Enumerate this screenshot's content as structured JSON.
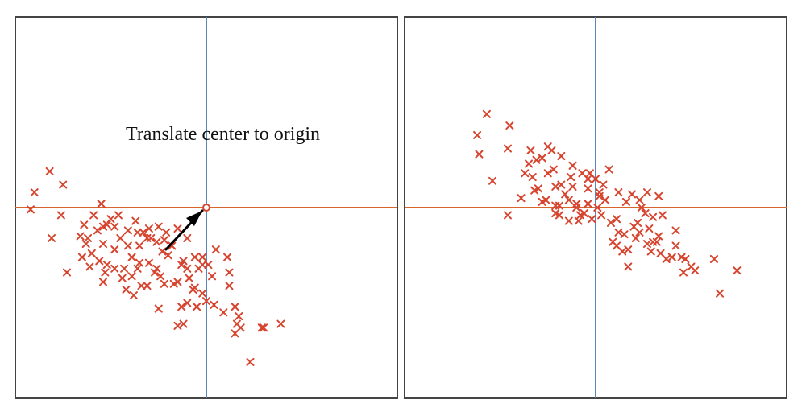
{
  "colors": {
    "points": "#d6452f",
    "horizontal_axis": "#d9652b",
    "vertical_axis": "#5b86b8",
    "frame": "#444444",
    "annotation_arrow": "#000000"
  },
  "annotation": {
    "text": "Translate center to origin",
    "arrow_icon": "arrow-up-right-icon"
  },
  "chart_data": [
    {
      "type": "scatter",
      "name": "before-translation",
      "marker": "x",
      "grid": false,
      "xlim": [
        -10,
        10
      ],
      "ylim": [
        -10,
        10
      ],
      "center": [
        0,
        0
      ],
      "points": [
        [
          -8.2,
          1.9
        ],
        [
          -9.0,
          0.8
        ],
        [
          -9.2,
          -0.1
        ],
        [
          -7.5,
          1.2
        ],
        [
          -7.6,
          -0.4
        ],
        [
          -8.1,
          -1.6
        ],
        [
          -7.3,
          -3.4
        ],
        [
          -5.9,
          -0.4
        ],
        [
          -5.7,
          -1.2
        ],
        [
          -5.5,
          0.2
        ],
        [
          -5.2,
          -0.9
        ],
        [
          -4.8,
          -1.0
        ],
        [
          -5.4,
          -1.9
        ],
        [
          -6.2,
          -1.6
        ],
        [
          -6.0,
          -2.4
        ],
        [
          -5.6,
          -2.8
        ],
        [
          -5.2,
          -3.0
        ],
        [
          -4.8,
          -2.2
        ],
        [
          -4.5,
          -1.6
        ],
        [
          -4.3,
          -3.2
        ],
        [
          -3.9,
          -3.6
        ],
        [
          -3.9,
          -2.6
        ],
        [
          -3.5,
          -2.0
        ],
        [
          -3.3,
          -1.3
        ],
        [
          -3.0,
          -2.9
        ],
        [
          -3.4,
          -4.1
        ],
        [
          -3.1,
          -4.1
        ],
        [
          -2.7,
          -3.4
        ],
        [
          -2.4,
          -3.6
        ],
        [
          -2.0,
          -2.5
        ],
        [
          -2.2,
          -1.7
        ],
        [
          -2.5,
          -1.0
        ],
        [
          -2.6,
          -3.2
        ],
        [
          -2.2,
          -4.0
        ],
        [
          -1.7,
          -4.0
        ],
        [
          -1.3,
          -3.0
        ],
        [
          -1.8,
          -2.0
        ],
        [
          -1.2,
          -2.8
        ],
        [
          -1.0,
          -1.6
        ],
        [
          -0.9,
          -3.7
        ],
        [
          -0.6,
          -4.2
        ],
        [
          -1.5,
          -3.9
        ],
        [
          -2.1,
          -1.3
        ],
        [
          -4.1,
          -1.2
        ],
        [
          -3.6,
          -1.3
        ],
        [
          -4.8,
          -3.2
        ],
        [
          -4.2,
          -4.3
        ],
        [
          -3.8,
          -4.6
        ],
        [
          -5.3,
          -3.4
        ],
        [
          -6.3,
          -1.9
        ],
        [
          -6.6,
          -1.5
        ],
        [
          -6.4,
          -0.9
        ],
        [
          -5.0,
          -0.6
        ],
        [
          -4.6,
          -0.4
        ],
        [
          -3.7,
          -0.7
        ],
        [
          -3.0,
          -1.1
        ],
        [
          -2.6,
          -1.8
        ],
        [
          -2.3,
          -2.3
        ],
        [
          -1.5,
          -1.1
        ],
        [
          -0.2,
          -2.6
        ],
        [
          0.1,
          -3.0
        ],
        [
          0.3,
          -3.6
        ],
        [
          -0.2,
          -4.5
        ],
        [
          -0.5,
          -5.2
        ],
        [
          -0.7,
          -4.3
        ],
        [
          -1.0,
          -5.0
        ],
        [
          -1.3,
          -5.2
        ],
        [
          -2.5,
          -5.3
        ],
        [
          -1.5,
          -6.2
        ],
        [
          0.0,
          -4.9
        ],
        [
          0.4,
          -5.1
        ],
        [
          0.9,
          -5.5
        ],
        [
          1.2,
          -4.1
        ],
        [
          1.1,
          -2.6
        ],
        [
          1.2,
          -3.4
        ],
        [
          1.5,
          -5.2
        ],
        [
          1.7,
          -5.7
        ],
        [
          1.6,
          -6.1
        ],
        [
          1.8,
          -6.3
        ],
        [
          1.5,
          -6.6
        ],
        [
          2.9,
          -6.3
        ],
        [
          3.9,
          -6.1
        ],
        [
          2.3,
          -8.1
        ],
        [
          3.0,
          -6.3
        ],
        [
          -1.2,
          -6.1
        ],
        [
          -3.1,
          -1.6
        ],
        [
          -4.1,
          -2.0
        ],
        [
          -3.5,
          -2.9
        ],
        [
          -5.4,
          -1.0
        ],
        [
          -6.5,
          -2.6
        ],
        [
          -6.1,
          -3.1
        ],
        [
          -5.4,
          -3.9
        ],
        [
          -4.4,
          -3.7
        ],
        [
          -3.6,
          -3.2
        ],
        [
          -2.9,
          -1.6
        ],
        [
          -0.4,
          -3.2
        ],
        [
          -0.2,
          -3.0
        ],
        [
          -0.6,
          -2.6
        ],
        [
          0.5,
          -2.2
        ],
        [
          -1.0,
          -3.2
        ]
      ]
    },
    {
      "type": "scatter",
      "name": "after-translation",
      "marker": "x",
      "grid": false,
      "xlim": [
        -10,
        10
      ],
      "ylim": [
        -10,
        10
      ],
      "center": [
        0,
        0
      ],
      "points": [
        [
          -5.7,
          4.9
        ],
        [
          -6.2,
          3.8
        ],
        [
          -6.1,
          2.8
        ],
        [
          -4.6,
          3.1
        ],
        [
          -4.5,
          4.3
        ],
        [
          -5.4,
          1.4
        ],
        [
          -4.6,
          -0.4
        ],
        [
          -3.1,
          2.5
        ],
        [
          -3.3,
          1.6
        ],
        [
          -3.0,
          1.0
        ],
        [
          -2.3,
          3.0
        ],
        [
          -2.8,
          2.6
        ],
        [
          -2.2,
          2.0
        ],
        [
          -3.2,
          0.9
        ],
        [
          -2.8,
          0.3
        ],
        [
          -2.1,
          0.1
        ],
        [
          -1.8,
          1.2
        ],
        [
          -1.8,
          2.7
        ],
        [
          -1.2,
          2.2
        ],
        [
          -1.3,
          1.6
        ],
        [
          -1.6,
          0.7
        ],
        [
          -1.0,
          0.2
        ],
        [
          -0.7,
          1.8
        ],
        [
          -0.4,
          1.5
        ],
        [
          -0.4,
          0.2
        ],
        [
          -0.9,
          -0.7
        ],
        [
          -1.4,
          -0.7
        ],
        [
          -1.9,
          -0.4
        ],
        [
          -2.6,
          0.4
        ],
        [
          -2.1,
          -0.3
        ],
        [
          -0.8,
          -0.4
        ],
        [
          -0.2,
          -0.6
        ],
        [
          0.1,
          0.0
        ],
        [
          0.2,
          0.6
        ],
        [
          0.0,
          1.5
        ],
        [
          0.7,
          2.0
        ],
        [
          0.5,
          0.4
        ],
        [
          0.8,
          -0.8
        ],
        [
          1.1,
          -0.6
        ],
        [
          1.2,
          0.8
        ],
        [
          1.6,
          0.3
        ],
        [
          1.9,
          0.7
        ],
        [
          2.3,
          0.4
        ],
        [
          2.7,
          0.8
        ],
        [
          2.2,
          -0.8
        ],
        [
          2.1,
          -1.6
        ],
        [
          2.3,
          -1.3
        ],
        [
          2.6,
          -0.3
        ],
        [
          2.4,
          0.0
        ],
        [
          3.3,
          0.6
        ],
        [
          3.5,
          -0.4
        ],
        [
          2.7,
          -1.9
        ],
        [
          1.2,
          -1.3
        ],
        [
          0.9,
          -1.8
        ],
        [
          1.7,
          -2.2
        ],
        [
          1.7,
          -3.1
        ],
        [
          1.4,
          -2.3
        ],
        [
          3.0,
          -1.8
        ],
        [
          3.2,
          -1.8
        ],
        [
          3.4,
          -2.4
        ],
        [
          4.2,
          -1.2
        ],
        [
          4.2,
          -2.0
        ],
        [
          4.0,
          -2.6
        ],
        [
          4.5,
          -2.6
        ],
        [
          4.7,
          -2.7
        ],
        [
          4.6,
          -3.4
        ],
        [
          5.0,
          -3.1
        ],
        [
          5.2,
          -3.3
        ],
        [
          6.2,
          -2.7
        ],
        [
          7.4,
          -3.3
        ],
        [
          6.5,
          -4.5
        ],
        [
          -3.9,
          0.5
        ],
        [
          -3.5,
          2.3
        ],
        [
          -3.7,
          1.8
        ],
        [
          -2.5,
          1.8
        ],
        [
          -2.1,
          1.1
        ],
        [
          -1.9,
          0.1
        ],
        [
          -1.4,
          0.4
        ],
        [
          -1.2,
          1.1
        ],
        [
          -0.4,
          1.0
        ],
        [
          0.3,
          -0.4
        ],
        [
          0.2,
          0.8
        ],
        [
          -3.4,
          3.0
        ],
        [
          -2.5,
          3.2
        ],
        [
          -0.6,
          -0.3
        ],
        [
          -1.0,
          0.0
        ],
        [
          0.4,
          1.2
        ],
        [
          1.5,
          -1.4
        ],
        [
          2.0,
          -1.0
        ],
        [
          2.9,
          -2.3
        ],
        [
          3.3,
          -1.5
        ],
        [
          3.0,
          -0.5
        ],
        [
          2.8,
          -1.1
        ],
        [
          3.7,
          -2.7
        ],
        [
          1.1,
          -2.0
        ],
        [
          -0.3,
          1.8
        ]
      ]
    }
  ]
}
